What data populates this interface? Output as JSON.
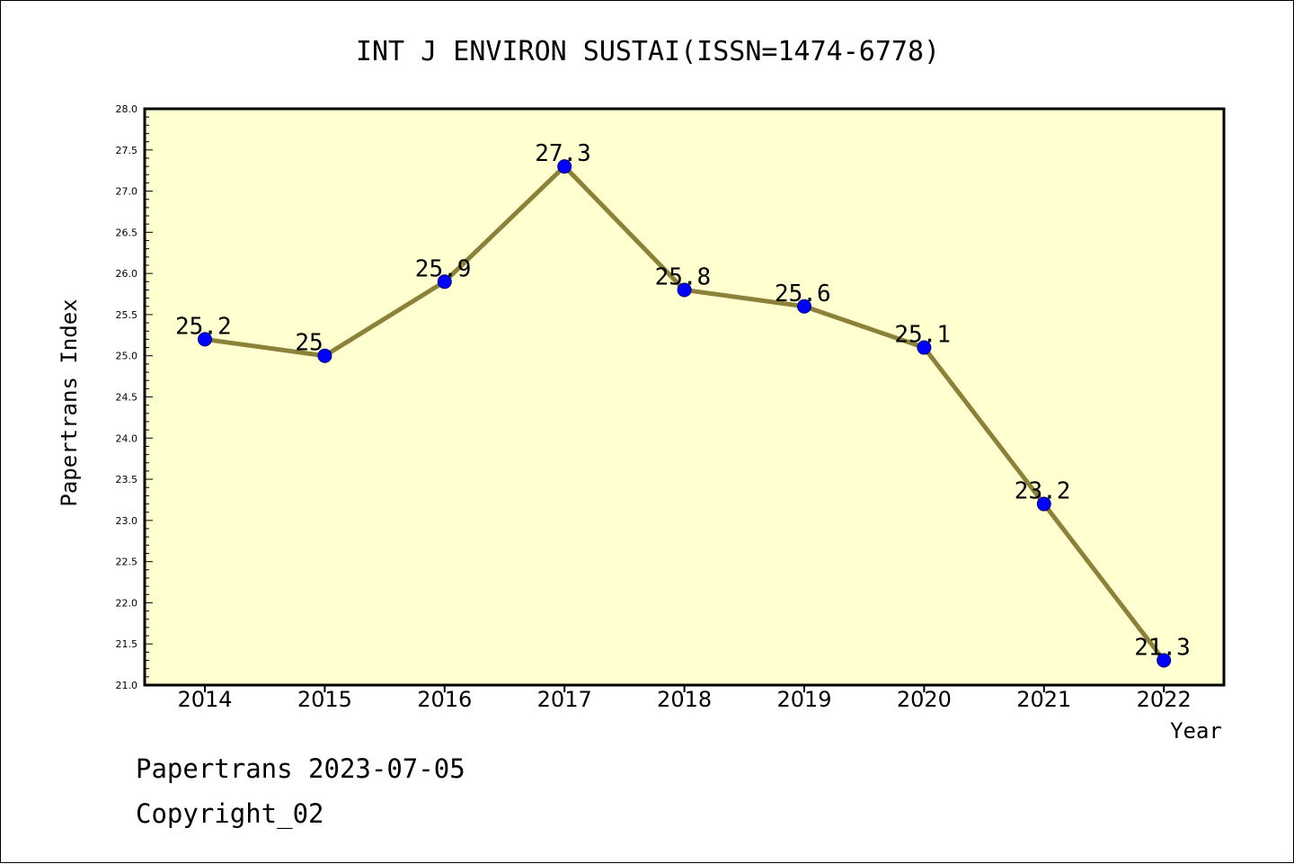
{
  "chart_data": {
    "type": "line",
    "title": "INT J ENVIRON SUSTAI(ISSN=1474-6778)",
    "xlabel": "Year",
    "ylabel": "Papertrans Index",
    "categories": [
      "2014",
      "2015",
      "2016",
      "2017",
      "2018",
      "2019",
      "2020",
      "2021",
      "2022"
    ],
    "values": [
      25.2,
      25.0,
      25.9,
      27.3,
      25.8,
      25.6,
      25.1,
      23.2,
      21.3
    ],
    "data_labels": [
      "25.2",
      "25",
      "25.9",
      "27.3",
      "25.8",
      "25.6",
      "25.1",
      "23.2",
      "21.3"
    ],
    "ylim": [
      21.0,
      28.0
    ],
    "yticks": [
      "21.0",
      "21.5",
      "22.0",
      "22.5",
      "23.0",
      "23.5",
      "24.0",
      "24.5",
      "25.0",
      "25.5",
      "26.0",
      "26.5",
      "27.0",
      "27.5",
      "28.0"
    ],
    "grid": false,
    "legend": "none",
    "colors": {
      "plot_background": "#ffffd0",
      "line": "#8b8139",
      "marker": "#0000ff",
      "marker_edge": "#000080"
    }
  },
  "footer": {
    "line1": "Papertrans 2023-07-05",
    "line2": "Copyright_02"
  }
}
